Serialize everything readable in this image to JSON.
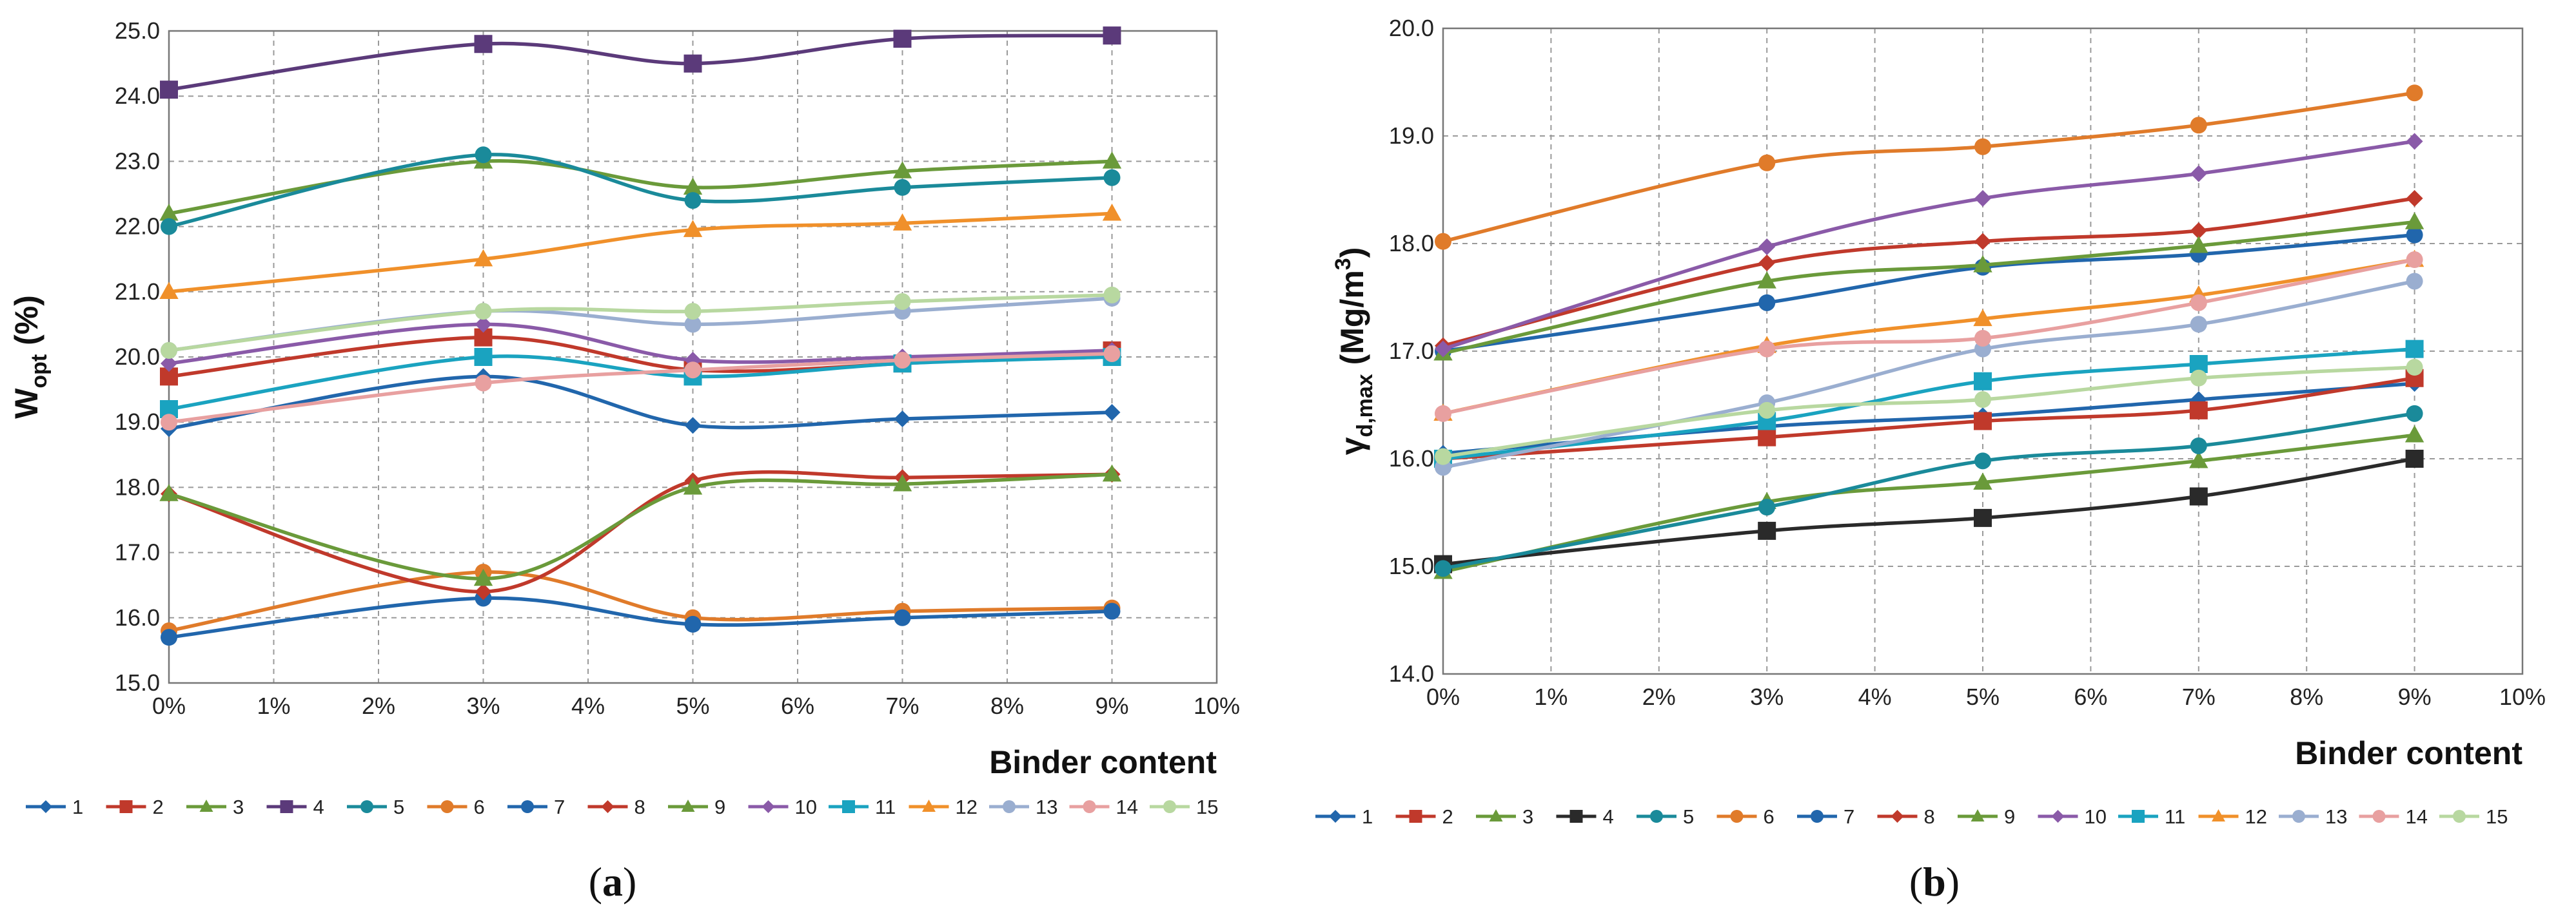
{
  "chart_data": [
    {
      "type": "line",
      "panel_label": {
        "open": "(",
        "letter": "a",
        "close": ")"
      },
      "ylabel": {
        "main": "W",
        "sub": "opt",
        "unit": " (%)"
      },
      "xlabel": "Binder content",
      "ylim": [
        15.0,
        25.0
      ],
      "yticks": [
        "15.0",
        "16.0",
        "17.0",
        "18.0",
        "19.0",
        "20.0",
        "21.0",
        "22.0",
        "23.0",
        "24.0",
        "25.0"
      ],
      "xlim": [
        0,
        10
      ],
      "xticks": [
        "0%",
        "1%",
        "2%",
        "3%",
        "4%",
        "5%",
        "6%",
        "7%",
        "8%",
        "9%",
        "10%"
      ],
      "x": [
        0,
        3,
        5,
        7,
        9
      ],
      "grid": true,
      "legend_position": "bottom",
      "series": [
        {
          "name": "1",
          "color": "#2166ac",
          "marker": "diamond",
          "values": [
            18.9,
            19.7,
            18.95,
            19.05,
            19.15
          ]
        },
        {
          "name": "2",
          "color": "#c0392b",
          "marker": "square",
          "values": [
            19.7,
            20.3,
            19.8,
            19.9,
            20.1
          ]
        },
        {
          "name": "3",
          "color": "#6a9a3a",
          "marker": "triangle",
          "values": [
            22.2,
            23.0,
            22.6,
            22.85,
            23.0
          ]
        },
        {
          "name": "4",
          "color": "#5b3a7a",
          "marker": "square",
          "values": [
            24.1,
            24.8,
            24.5,
            24.88,
            24.93
          ]
        },
        {
          "name": "5",
          "color": "#1a8a9a",
          "marker": "circle",
          "values": [
            22.0,
            23.1,
            22.4,
            22.6,
            22.75
          ]
        },
        {
          "name": "6",
          "color": "#e07b2a",
          "marker": "circle",
          "values": [
            15.8,
            16.7,
            16.0,
            16.1,
            16.15
          ]
        },
        {
          "name": "7",
          "color": "#2166ac",
          "marker": "circle",
          "values": [
            15.7,
            16.3,
            15.9,
            16.0,
            16.1
          ]
        },
        {
          "name": "8",
          "color": "#c0392b",
          "marker": "diamond",
          "values": [
            17.9,
            16.4,
            18.1,
            18.15,
            18.2
          ]
        },
        {
          "name": "9",
          "color": "#6a9a3a",
          "marker": "triangle",
          "values": [
            17.9,
            16.6,
            18.0,
            18.05,
            18.2
          ]
        },
        {
          "name": "10",
          "color": "#8a5aa8",
          "marker": "diamond",
          "values": [
            19.9,
            20.5,
            19.95,
            20.0,
            20.1
          ]
        },
        {
          "name": "11",
          "color": "#1aa3c0",
          "marker": "square",
          "values": [
            19.2,
            20.0,
            19.7,
            19.9,
            20.0
          ]
        },
        {
          "name": "12",
          "color": "#f0902a",
          "marker": "triangle",
          "values": [
            21.0,
            21.5,
            21.95,
            22.05,
            22.2
          ]
        },
        {
          "name": "13",
          "color": "#9aaed0",
          "marker": "circle",
          "values": [
            20.1,
            20.7,
            20.5,
            20.7,
            20.9
          ]
        },
        {
          "name": "14",
          "color": "#e8a0a0",
          "marker": "circle",
          "values": [
            19.0,
            19.6,
            19.8,
            19.95,
            20.05
          ]
        },
        {
          "name": "15",
          "color": "#b8d8a0",
          "marker": "circle",
          "values": [
            20.1,
            20.7,
            20.7,
            20.85,
            20.95
          ]
        }
      ]
    },
    {
      "type": "line",
      "panel_label": {
        "open": "(",
        "letter": "b",
        "close": ")"
      },
      "ylabel": {
        "main": "γ",
        "sub": "d,max",
        "unit": " (Mg/m",
        "sup": "3",
        "close": ")"
      },
      "xlabel": "Binder content",
      "ylim": [
        14.0,
        20.0
      ],
      "yticks": [
        "14.0",
        "15.0",
        "16.0",
        "17.0",
        "18.0",
        "19.0",
        "20.0"
      ],
      "xlim": [
        0,
        10
      ],
      "xticks": [
        "0%",
        "1%",
        "2%",
        "3%",
        "4%",
        "5%",
        "6%",
        "7%",
        "8%",
        "9%",
        "10%"
      ],
      "x": [
        0,
        3,
        5,
        7,
        9
      ],
      "grid": true,
      "legend_position": "bottom",
      "series": [
        {
          "name": "1",
          "color": "#2166ac",
          "marker": "diamond",
          "values": [
            16.05,
            16.3,
            16.4,
            16.55,
            16.7
          ]
        },
        {
          "name": "2",
          "color": "#c0392b",
          "marker": "square",
          "values": [
            16.0,
            16.2,
            16.35,
            16.45,
            16.75
          ]
        },
        {
          "name": "3",
          "color": "#6a9a3a",
          "marker": "triangle",
          "values": [
            14.95,
            15.6,
            15.78,
            15.98,
            16.22
          ]
        },
        {
          "name": "4",
          "color": "#2a2a2a",
          "marker": "square",
          "values": [
            15.02,
            15.33,
            15.45,
            15.65,
            16.0
          ]
        },
        {
          "name": "5",
          "color": "#1a8a9a",
          "marker": "circle",
          "values": [
            14.98,
            15.55,
            15.98,
            16.12,
            16.42
          ]
        },
        {
          "name": "6",
          "color": "#e07b2a",
          "marker": "circle",
          "values": [
            18.02,
            18.75,
            18.9,
            19.1,
            19.4
          ]
        },
        {
          "name": "7",
          "color": "#2166ac",
          "marker": "circle",
          "values": [
            17.0,
            17.45,
            17.78,
            17.9,
            18.08
          ]
        },
        {
          "name": "8",
          "color": "#c0392b",
          "marker": "diamond",
          "values": [
            17.05,
            17.82,
            18.02,
            18.12,
            18.42
          ]
        },
        {
          "name": "9",
          "color": "#6a9a3a",
          "marker": "triangle",
          "values": [
            16.98,
            17.65,
            17.8,
            17.98,
            18.2
          ]
        },
        {
          "name": "10",
          "color": "#8a5aa8",
          "marker": "diamond",
          "values": [
            17.02,
            17.97,
            18.42,
            18.65,
            18.95
          ]
        },
        {
          "name": "11",
          "color": "#1aa3c0",
          "marker": "square",
          "values": [
            16.0,
            16.35,
            16.72,
            16.88,
            17.02
          ]
        },
        {
          "name": "12",
          "color": "#f0902a",
          "marker": "triangle",
          "values": [
            16.42,
            17.05,
            17.3,
            17.52,
            17.85
          ]
        },
        {
          "name": "13",
          "color": "#9aaed0",
          "marker": "circle",
          "values": [
            15.92,
            16.52,
            17.02,
            17.25,
            17.65
          ]
        },
        {
          "name": "14",
          "color": "#e8a0a0",
          "marker": "circle",
          "values": [
            16.42,
            17.02,
            17.12,
            17.45,
            17.85
          ]
        },
        {
          "name": "15",
          "color": "#b8d8a0",
          "marker": "circle",
          "values": [
            16.02,
            16.45,
            16.55,
            16.75,
            16.85
          ]
        }
      ]
    }
  ]
}
